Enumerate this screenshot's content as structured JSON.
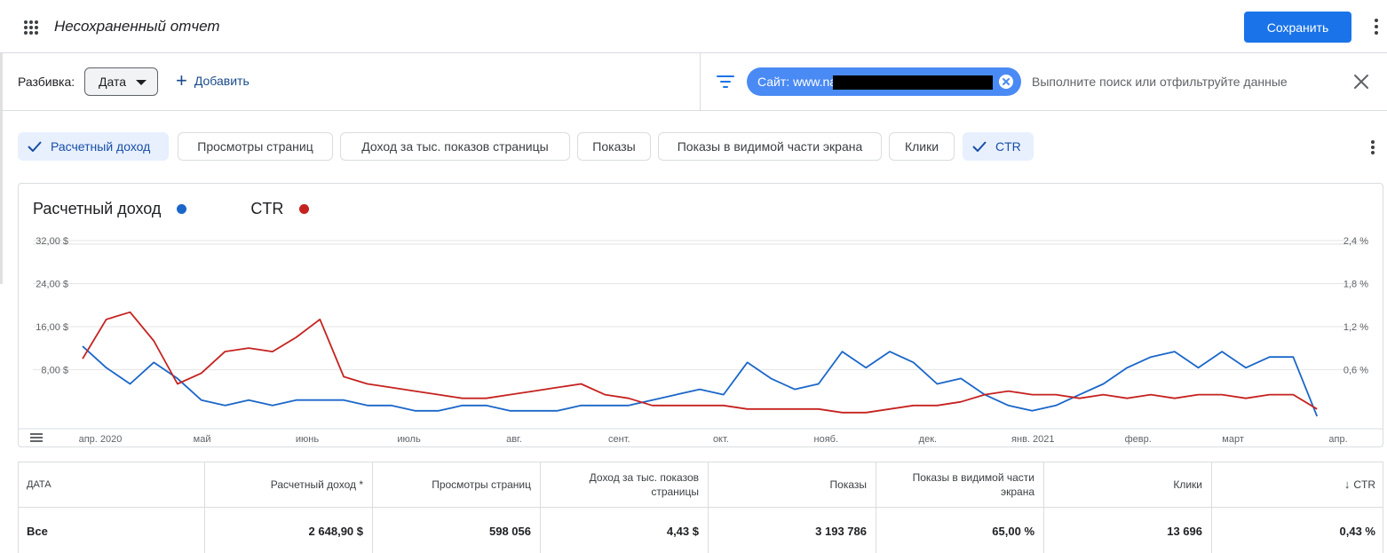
{
  "header": {
    "report_title": "Несохраненный отчет",
    "save_label": "Сохранить"
  },
  "filterbar": {
    "breakdown_label": "Разбивка:",
    "date_dropdown": "Дата",
    "add_label": "Добавить",
    "filter_chip_label": "Сайт: www.na",
    "search_placeholder": "Выполните поиск или отфильтруйте данные"
  },
  "metrics": [
    {
      "label": "Расчетный доход",
      "selected": true
    },
    {
      "label": "Просмотры страниц",
      "selected": false
    },
    {
      "label": "Доход за тыс. показов страницы",
      "selected": false
    },
    {
      "label": "Показы",
      "selected": false
    },
    {
      "label": "Показы в видимой части экрана",
      "selected": false
    },
    {
      "label": "Клики",
      "selected": false
    },
    {
      "label": "CTR",
      "selected": true
    }
  ],
  "colors": {
    "accent": "#1a73e8",
    "revenue_series": "#1a66c9",
    "ctr_series": "#c5221f",
    "chip_selected_bg": "#e8f0fe",
    "filter_chip_bg": "#4a8af4"
  },
  "chart_data": {
    "type": "line",
    "title": "",
    "legend": [
      "Расчетный доход",
      "CTR"
    ],
    "legend_position": "top-left",
    "grid": true,
    "x_labels": [
      "апр. 2020",
      "май",
      "июнь",
      "июль",
      "авг.",
      "сент.",
      "окт.",
      "нояб.",
      "дек.",
      "янв. 2021",
      "февр.",
      "март",
      "апр."
    ],
    "x_range": [
      "2020-04-01",
      "2021-04-01"
    ],
    "y_left": {
      "ticks": [
        "32,00 $",
        "24,00 $",
        "16,00 $",
        "8,00 $"
      ],
      "range": [
        0,
        32
      ],
      "unit": "$"
    },
    "y_right": {
      "ticks": [
        "2,4 %",
        "1,8 %",
        "1,2 %",
        "0,6 %"
      ],
      "range": [
        0,
        2.4
      ],
      "unit": "%"
    },
    "series": [
      {
        "name": "Расчетный доход",
        "axis": "left",
        "points": [
          [
            "2020-04-01",
            15
          ],
          [
            "2020-04-08",
            11
          ],
          [
            "2020-04-15",
            8
          ],
          [
            "2020-04-22",
            12
          ],
          [
            "2020-04-29",
            9
          ],
          [
            "2020-05-06",
            5
          ],
          [
            "2020-05-13",
            4
          ],
          [
            "2020-05-20",
            5
          ],
          [
            "2020-05-27",
            4
          ],
          [
            "2020-06-03",
            5
          ],
          [
            "2020-06-10",
            5
          ],
          [
            "2020-06-17",
            5
          ],
          [
            "2020-06-24",
            4
          ],
          [
            "2020-07-01",
            4
          ],
          [
            "2020-07-08",
            3
          ],
          [
            "2020-07-15",
            3
          ],
          [
            "2020-07-22",
            4
          ],
          [
            "2020-07-29",
            4
          ],
          [
            "2020-08-05",
            3
          ],
          [
            "2020-08-12",
            3
          ],
          [
            "2020-08-19",
            3
          ],
          [
            "2020-08-26",
            4
          ],
          [
            "2020-09-02",
            4
          ],
          [
            "2020-09-09",
            4
          ],
          [
            "2020-09-16",
            5
          ],
          [
            "2020-09-23",
            6
          ],
          [
            "2020-09-30",
            7
          ],
          [
            "2020-10-07",
            6
          ],
          [
            "2020-10-14",
            12
          ],
          [
            "2020-10-21",
            9
          ],
          [
            "2020-10-28",
            7
          ],
          [
            "2020-11-04",
            8
          ],
          [
            "2020-11-11",
            14
          ],
          [
            "2020-11-18",
            11
          ],
          [
            "2020-11-25",
            14
          ],
          [
            "2020-12-02",
            12
          ],
          [
            "2020-12-09",
            8
          ],
          [
            "2020-12-16",
            9
          ],
          [
            "2020-12-23",
            6
          ],
          [
            "2020-12-30",
            4
          ],
          [
            "2021-01-06",
            3
          ],
          [
            "2021-01-13",
            4
          ],
          [
            "2021-01-20",
            6
          ],
          [
            "2021-01-27",
            8
          ],
          [
            "2021-02-03",
            11
          ],
          [
            "2021-02-10",
            13
          ],
          [
            "2021-02-17",
            14
          ],
          [
            "2021-02-24",
            11
          ],
          [
            "2021-03-03",
            14
          ],
          [
            "2021-03-10",
            11
          ],
          [
            "2021-03-17",
            13
          ],
          [
            "2021-03-24",
            13
          ],
          [
            "2021-03-31",
            2
          ]
        ]
      },
      {
        "name": "CTR",
        "axis": "right",
        "points": [
          [
            "2020-04-01",
            0.95
          ],
          [
            "2020-04-08",
            1.5
          ],
          [
            "2020-04-15",
            1.6
          ],
          [
            "2020-04-22",
            1.2
          ],
          [
            "2020-04-29",
            0.6
          ],
          [
            "2020-05-06",
            0.75
          ],
          [
            "2020-05-13",
            1.05
          ],
          [
            "2020-05-20",
            1.1
          ],
          [
            "2020-05-27",
            1.05
          ],
          [
            "2020-06-03",
            1.25
          ],
          [
            "2020-06-10",
            1.5
          ],
          [
            "2020-06-17",
            0.7
          ],
          [
            "2020-06-24",
            0.6
          ],
          [
            "2020-07-01",
            0.55
          ],
          [
            "2020-07-08",
            0.5
          ],
          [
            "2020-07-15",
            0.45
          ],
          [
            "2020-07-22",
            0.4
          ],
          [
            "2020-07-29",
            0.4
          ],
          [
            "2020-08-05",
            0.45
          ],
          [
            "2020-08-12",
            0.5
          ],
          [
            "2020-08-19",
            0.55
          ],
          [
            "2020-08-26",
            0.6
          ],
          [
            "2020-09-02",
            0.45
          ],
          [
            "2020-09-09",
            0.4
          ],
          [
            "2020-09-16",
            0.3
          ],
          [
            "2020-09-23",
            0.3
          ],
          [
            "2020-09-30",
            0.3
          ],
          [
            "2020-10-07",
            0.3
          ],
          [
            "2020-10-14",
            0.25
          ],
          [
            "2020-10-21",
            0.25
          ],
          [
            "2020-10-28",
            0.25
          ],
          [
            "2020-11-04",
            0.25
          ],
          [
            "2020-11-11",
            0.2
          ],
          [
            "2020-11-18",
            0.2
          ],
          [
            "2020-11-25",
            0.25
          ],
          [
            "2020-12-02",
            0.3
          ],
          [
            "2020-12-09",
            0.3
          ],
          [
            "2020-12-16",
            0.35
          ],
          [
            "2020-12-23",
            0.45
          ],
          [
            "2020-12-30",
            0.5
          ],
          [
            "2021-01-06",
            0.45
          ],
          [
            "2021-01-13",
            0.45
          ],
          [
            "2021-01-20",
            0.4
          ],
          [
            "2021-01-27",
            0.45
          ],
          [
            "2021-02-03",
            0.4
          ],
          [
            "2021-02-10",
            0.45
          ],
          [
            "2021-02-17",
            0.4
          ],
          [
            "2021-02-24",
            0.45
          ],
          [
            "2021-03-03",
            0.45
          ],
          [
            "2021-03-10",
            0.4
          ],
          [
            "2021-03-17",
            0.45
          ],
          [
            "2021-03-24",
            0.45
          ],
          [
            "2021-03-31",
            0.25
          ]
        ]
      }
    ]
  },
  "table": {
    "headers": [
      "ДАТА",
      "Расчетный доход *",
      "Просмотры страниц",
      "Доход за тыс. показов страницы",
      "Показы",
      "Показы в видимой части экрана",
      "Клики",
      "CTR"
    ],
    "sort_arrow": "↓",
    "rows": [
      [
        "Все",
        "2 648,90 $",
        "598 056",
        "4,43 $",
        "3 193 786",
        "65,00 %",
        "13 696",
        "0,43 %"
      ]
    ]
  }
}
